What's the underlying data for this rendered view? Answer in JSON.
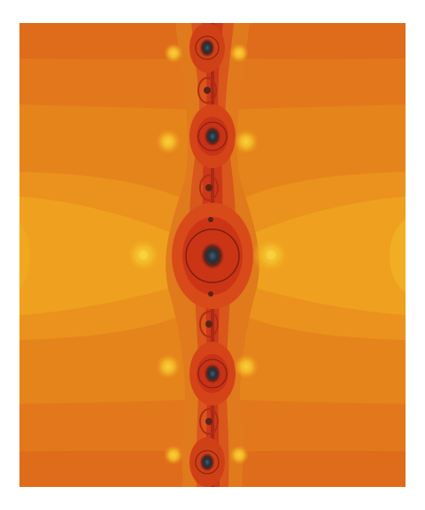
{
  "image": {
    "subject": "fractal-rendering",
    "palette": {
      "outer": "#de6e1a",
      "mid": "#e88c1c",
      "bright": "#f0a81c",
      "highlight": "#f8c430",
      "deep_red": "#c62e14",
      "red": "#d8401c",
      "core_dark": "#22303c",
      "core_teal": "#3a5a66"
    }
  }
}
